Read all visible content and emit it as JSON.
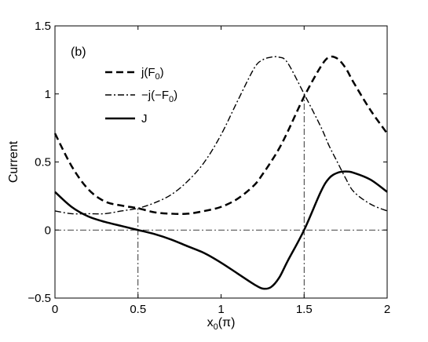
{
  "chart_data": {
    "type": "line",
    "panel_label": "(b)",
    "xlabel": "x",
    "xlabel_sub": "0",
    "xlabel_suffix": "(π)",
    "ylabel": "Current",
    "xlim": [
      0,
      2
    ],
    "ylim": [
      -0.5,
      1.5
    ],
    "x_ticks": [
      {
        "value": 0,
        "label": "0"
      },
      {
        "value": 0.5,
        "label": "0.5"
      },
      {
        "value": 1,
        "label": "1"
      },
      {
        "value": 1.5,
        "label": "1.5"
      },
      {
        "value": 2,
        "label": "2"
      }
    ],
    "y_ticks": [
      {
        "value": -0.5,
        "label": "−0.5"
      },
      {
        "value": 0,
        "label": "0"
      },
      {
        "value": 0.5,
        "label": "0.5"
      },
      {
        "value": 1,
        "label": "1"
      },
      {
        "value": 1.5,
        "label": "1.5"
      }
    ],
    "grid": false,
    "legend_position": "top-left",
    "x": [
      0,
      0.1,
      0.2,
      0.3,
      0.4,
      0.5,
      0.6,
      0.7,
      0.8,
      0.9,
      1.0,
      1.1,
      1.2,
      1.25,
      1.3,
      1.35,
      1.4,
      1.5,
      1.6,
      1.65,
      1.7,
      1.75,
      1.8,
      1.9,
      2.0
    ],
    "series": [
      {
        "name": "j(F0)",
        "legend_text": "j(F",
        "legend_sub": "0",
        "legend_tail": ")",
        "style": "dashed",
        "values": [
          0.71,
          0.47,
          0.3,
          0.21,
          0.18,
          0.16,
          0.13,
          0.12,
          0.12,
          0.14,
          0.17,
          0.23,
          0.33,
          0.41,
          0.5,
          0.6,
          0.72,
          0.98,
          1.2,
          1.27,
          1.26,
          1.19,
          1.08,
          0.88,
          0.71
        ]
      },
      {
        "name": "−j(−F0)",
        "legend_text": "−j(−F",
        "legend_sub": "0",
        "legend_tail": ")",
        "style": "dashdot",
        "values": [
          0.14,
          0.12,
          0.12,
          0.12,
          0.14,
          0.16,
          0.2,
          0.26,
          0.36,
          0.5,
          0.7,
          0.95,
          1.19,
          1.25,
          1.27,
          1.27,
          1.23,
          1.0,
          0.76,
          0.62,
          0.5,
          0.38,
          0.28,
          0.19,
          0.14
        ]
      },
      {
        "name": "J",
        "legend_text": "J",
        "legend_sub": "",
        "legend_tail": "",
        "style": "solid",
        "values": [
          0.28,
          0.17,
          0.1,
          0.06,
          0.03,
          0.0,
          -0.03,
          -0.07,
          -0.12,
          -0.17,
          -0.24,
          -0.32,
          -0.4,
          -0.43,
          -0.42,
          -0.35,
          -0.23,
          0.0,
          0.28,
          0.38,
          0.42,
          0.43,
          0.42,
          0.37,
          0.28
        ]
      }
    ],
    "reference_lines": [
      {
        "orientation": "horizontal",
        "value": 0,
        "style": "dashdot"
      },
      {
        "orientation": "vertical",
        "value": 0.5,
        "from": -0.5,
        "to": 0.16,
        "style": "dashdot"
      },
      {
        "orientation": "vertical",
        "value": 1.5,
        "from": -0.5,
        "to": 1.0,
        "style": "dashdot"
      }
    ]
  }
}
